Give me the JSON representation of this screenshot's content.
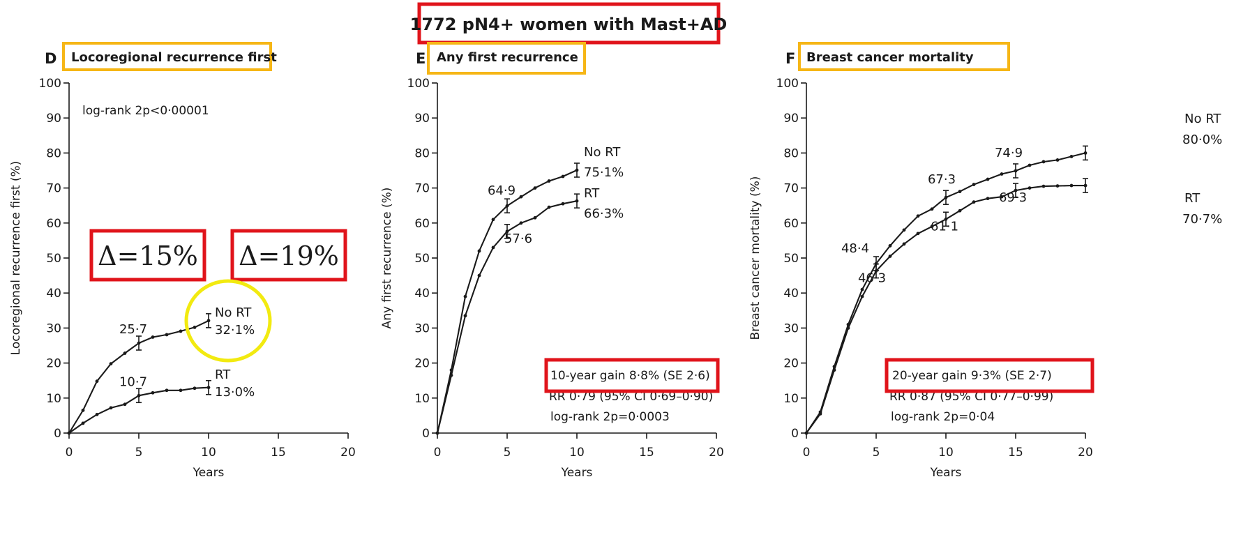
{
  "main_title": "1772 pN4+ women with Mast+AD",
  "colors": {
    "red_box": "#e0141b",
    "orange_box": "#f6b616",
    "yellow_circle": "#f2ea10",
    "curve": "#1a1a1a"
  },
  "chart_data": [
    {
      "type": "line",
      "panel_letter": "D",
      "title": "Locoregional recurrence first",
      "xlabel": "Years",
      "ylabel": "Locoregional recurrence first (%)",
      "xlim": [
        0,
        20
      ],
      "ylim": [
        0,
        100
      ],
      "xticks": [
        0,
        5,
        10,
        15,
        20
      ],
      "yticks": [
        0,
        10,
        20,
        30,
        40,
        50,
        60,
        70,
        80,
        90,
        100
      ],
      "annotations": [
        "log-rank 2p<0·00001"
      ],
      "deltas": [
        "Δ=15%",
        "Δ=19%"
      ],
      "series": [
        {
          "name": "No RT",
          "end_label": "32·1%",
          "x": [
            0,
            1,
            2,
            3,
            4,
            5,
            6,
            7,
            8,
            9,
            10
          ],
          "y": [
            0,
            6.5,
            14.8,
            19.8,
            22.8,
            25.7,
            27.4,
            28.1,
            29.1,
            30.2,
            32.1
          ],
          "point_labels": [
            {
              "x": 5,
              "text": "25·7"
            }
          ]
        },
        {
          "name": "RT",
          "end_label": "13·0%",
          "x": [
            0,
            1,
            2,
            3,
            4,
            5,
            6,
            7,
            8,
            9,
            10
          ],
          "y": [
            0,
            2.8,
            5.3,
            7.2,
            8.2,
            10.7,
            11.5,
            12.2,
            12.2,
            12.8,
            13.0
          ],
          "point_labels": [
            {
              "x": 5,
              "text": "10·7"
            }
          ]
        }
      ]
    },
    {
      "type": "line",
      "panel_letter": "E",
      "title": "Any first recurrence",
      "xlabel": "Years",
      "ylabel": "Any first recurrence (%)",
      "xlim": [
        0,
        20
      ],
      "ylim": [
        0,
        100
      ],
      "xticks": [
        0,
        5,
        10,
        15,
        20
      ],
      "yticks": [
        0,
        10,
        20,
        30,
        40,
        50,
        60,
        70,
        80,
        90,
        100
      ],
      "annotations": [
        "10-year gain 8·8% (SE 2·6)",
        "RR 0·79 (95% CI 0·69–0·90)",
        "log-rank 2p=0·0003"
      ],
      "series": [
        {
          "name": "No RT",
          "end_label": "75·1%",
          "x": [
            0,
            1,
            2,
            3,
            4,
            5,
            6,
            7,
            8,
            9,
            10
          ],
          "y": [
            0,
            18.0,
            39.0,
            52.0,
            61.0,
            64.9,
            67.5,
            70.0,
            72.0,
            73.3,
            75.1
          ],
          "point_labels": [
            {
              "x": 5,
              "text": "64·9"
            }
          ]
        },
        {
          "name": "RT",
          "end_label": "66·3%",
          "x": [
            0,
            1,
            2,
            3,
            4,
            5,
            6,
            7,
            8,
            9,
            10
          ],
          "y": [
            0,
            16.5,
            33.5,
            45.0,
            53.0,
            57.6,
            60.0,
            61.5,
            64.5,
            65.5,
            66.3
          ],
          "point_labels": [
            {
              "x": 5,
              "text": "57·6"
            }
          ]
        }
      ]
    },
    {
      "type": "line",
      "panel_letter": "F",
      "title": "Breast cancer mortality",
      "xlabel": "Years",
      "ylabel": "Breast cancer mortality (%)",
      "xlim": [
        0,
        20
      ],
      "ylim": [
        0,
        100
      ],
      "xticks": [
        0,
        5,
        10,
        15,
        20
      ],
      "yticks": [
        0,
        10,
        20,
        30,
        40,
        50,
        60,
        70,
        80,
        90,
        100
      ],
      "annotations": [
        "20-year gain 9·3% (SE 2·7)",
        "RR 0·87 (95% CI 0·77–0·99)",
        "log-rank 2p=0·04"
      ],
      "series": [
        {
          "name": "No RT",
          "end_label": "80·0%",
          "x": [
            0,
            1,
            2,
            3,
            4,
            5,
            6,
            7,
            8,
            9,
            10,
            11,
            12,
            13,
            14,
            15,
            16,
            17,
            18,
            19,
            20
          ],
          "y": [
            0,
            6.0,
            19.0,
            31.0,
            41.0,
            48.4,
            53.5,
            58.0,
            62.0,
            64.0,
            67.3,
            69.0,
            71.0,
            72.5,
            74.0,
            74.9,
            76.5,
            77.5,
            78.0,
            79.0,
            80.0
          ],
          "point_labels": [
            {
              "x": 5,
              "text": "48·4"
            },
            {
              "x": 10,
              "text": "67·3"
            },
            {
              "x": 15,
              "text": "74·9"
            }
          ]
        },
        {
          "name": "RT",
          "end_label": "70·7%",
          "x": [
            0,
            1,
            2,
            3,
            4,
            5,
            6,
            7,
            8,
            9,
            10,
            11,
            12,
            13,
            14,
            15,
            16,
            17,
            18,
            19,
            20
          ],
          "y": [
            0,
            5.5,
            18.0,
            30.0,
            39.0,
            46.3,
            50.5,
            54.0,
            57.0,
            59.0,
            61.1,
            63.5,
            66.0,
            67.0,
            67.5,
            69.3,
            70.0,
            70.5,
            70.6,
            70.7,
            70.7
          ],
          "point_labels": [
            {
              "x": 5,
              "text": "46·3"
            },
            {
              "x": 10,
              "text": "61·1"
            },
            {
              "x": 15,
              "text": "69·3"
            }
          ]
        }
      ]
    }
  ]
}
